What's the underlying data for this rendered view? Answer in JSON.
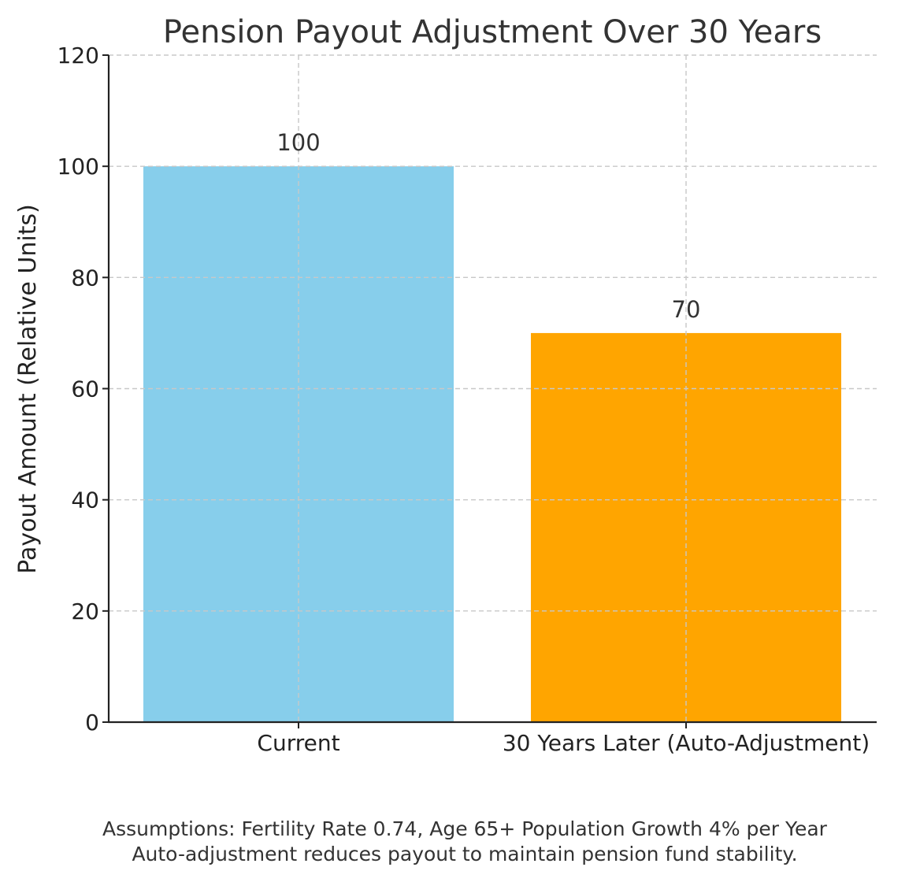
{
  "chart_data": {
    "type": "bar",
    "title": "Pension Payout Adjustment Over 30 Years",
    "xlabel": "",
    "ylabel": "Payout Amount (Relative Units)",
    "categories": [
      "Current",
      "30 Years Later (Auto-Adjustment)"
    ],
    "values": [
      100,
      70
    ],
    "data_labels": [
      "100",
      "70"
    ],
    "colors": [
      "#87CEEB",
      "#FFA500"
    ],
    "ylim": [
      0,
      120
    ],
    "yticks": [
      0,
      20,
      40,
      60,
      80,
      100,
      120
    ],
    "grid": true,
    "notes": [
      "Assumptions: Fertility Rate 0.74, Age 65+ Population Growth 4% per Year",
      "Auto-adjustment reduces payout to maintain pension fund stability."
    ]
  }
}
